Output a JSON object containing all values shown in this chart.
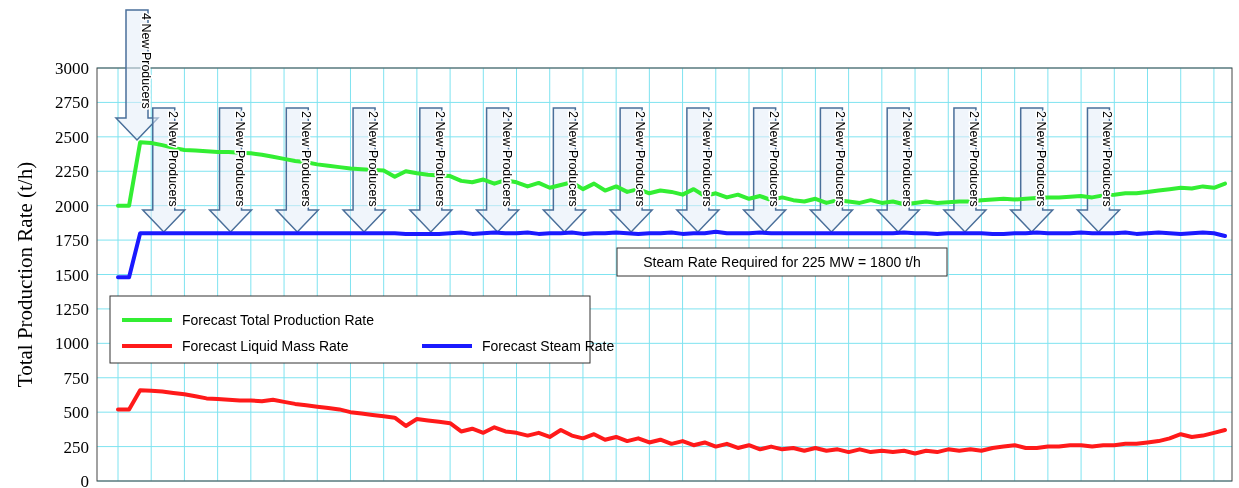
{
  "chart_data": {
    "type": "line",
    "ylabel": "Total Production Rate (t/h)",
    "categories": [
      null,
      null,
      null,
      null,
      null,
      null,
      null,
      null,
      null,
      null,
      null,
      null,
      null,
      null,
      null,
      null,
      null,
      null,
      null,
      null,
      null,
      null,
      null,
      null,
      null,
      null,
      null,
      null,
      null,
      null,
      null,
      null,
      null,
      null,
      null,
      null,
      null,
      null,
      null,
      null,
      null,
      null,
      null,
      null,
      null,
      null,
      null,
      null,
      null,
      null,
      null,
      null,
      null,
      null,
      null,
      null,
      null,
      null,
      null,
      null,
      null,
      null,
      null,
      null,
      null,
      null,
      null,
      null,
      null,
      null,
      null,
      null,
      null,
      null,
      null,
      null,
      null,
      null,
      null,
      null,
      null,
      null,
      null,
      null,
      null,
      null,
      null,
      null,
      null,
      null,
      null,
      null,
      null,
      null,
      null,
      null,
      null,
      null,
      null,
      null,
      null
    ],
    "series": [
      {
        "name": "Forecast Total Production Rate",
        "color": "#33ee33",
        "values": [
          2000,
          2000,
          2460,
          2455,
          2440,
          2420,
          2405,
          2400,
          2395,
          2390,
          2390,
          2385,
          2380,
          2370,
          2355,
          2340,
          2325,
          2315,
          2300,
          2290,
          2280,
          2270,
          2265,
          2260,
          2255,
          2210,
          2250,
          2235,
          2225,
          2220,
          2215,
          2180,
          2170,
          2190,
          2160,
          2185,
          2170,
          2140,
          2165,
          2130,
          2150,
          2170,
          2120,
          2160,
          2110,
          2140,
          2100,
          2120,
          2090,
          2110,
          2100,
          2080,
          2120,
          2070,
          2090,
          2060,
          2080,
          2050,
          2070,
          2040,
          2060,
          2040,
          2030,
          2050,
          2020,
          2040,
          2030,
          2020,
          2040,
          2020,
          2030,
          2010,
          2020,
          2030,
          2020,
          2025,
          2030,
          2030,
          2040,
          2045,
          2050,
          2045,
          2050,
          2055,
          2060,
          2060,
          2065,
          2070,
          2060,
          2075,
          2080,
          2090,
          2090,
          2100,
          2110,
          2120,
          2130,
          2125,
          2140,
          2130,
          2160
        ]
      },
      {
        "name": "Forecast Liquid Mass Rate",
        "color": "#ff1a1a",
        "values": [
          520,
          520,
          660,
          655,
          650,
          640,
          630,
          615,
          600,
          595,
          590,
          585,
          585,
          580,
          590,
          575,
          560,
          550,
          540,
          530,
          520,
          500,
          490,
          480,
          470,
          460,
          400,
          450,
          440,
          430,
          420,
          360,
          380,
          350,
          390,
          360,
          350,
          330,
          350,
          320,
          370,
          330,
          310,
          340,
          300,
          320,
          290,
          310,
          280,
          300,
          270,
          290,
          260,
          280,
          250,
          270,
          240,
          260,
          230,
          250,
          230,
          240,
          220,
          240,
          220,
          230,
          210,
          230,
          210,
          220,
          210,
          220,
          200,
          220,
          210,
          230,
          220,
          230,
          220,
          240,
          250,
          260,
          240,
          240,
          250,
          250,
          260,
          260,
          250,
          260,
          260,
          270,
          270,
          280,
          290,
          310,
          340,
          320,
          330,
          350,
          370
        ]
      },
      {
        "name": "Forecast Steam Rate",
        "color": "#1a1aff",
        "values": [
          1480,
          1480,
          1800,
          1800,
          1800,
          1800,
          1800,
          1800,
          1800,
          1800,
          1800,
          1800,
          1800,
          1800,
          1800,
          1800,
          1800,
          1800,
          1800,
          1800,
          1800,
          1800,
          1800,
          1800,
          1800,
          1800,
          1795,
          1795,
          1795,
          1795,
          1800,
          1805,
          1795,
          1800,
          1805,
          1800,
          1800,
          1805,
          1795,
          1800,
          1800,
          1805,
          1795,
          1800,
          1800,
          1805,
          1800,
          1795,
          1800,
          1800,
          1805,
          1795,
          1800,
          1800,
          1810,
          1800,
          1800,
          1800,
          1805,
          1800,
          1800,
          1800,
          1800,
          1800,
          1800,
          1800,
          1800,
          1800,
          1800,
          1800,
          1800,
          1805,
          1800,
          1800,
          1795,
          1800,
          1800,
          1800,
          1800,
          1795,
          1795,
          1800,
          1800,
          1805,
          1800,
          1800,
          1800,
          1805,
          1800,
          1800,
          1800,
          1805,
          1795,
          1800,
          1805,
          1800,
          1795,
          1800,
          1805,
          1800,
          1780
        ]
      }
    ],
    "ylim": [
      0,
      3000
    ],
    "yticks": [
      0,
      250,
      500,
      750,
      1000,
      1250,
      1500,
      1750,
      2000,
      2250,
      2500,
      2750,
      3000
    ],
    "grid": true,
    "legend": "left",
    "line_style": "solid",
    "annotations": [
      "4 New Producers",
      "2 New Producers",
      "2 New Producers",
      "2 New Producers",
      "2 New Producers",
      "2 New Producers",
      "2 New Producers",
      "2 New Producers",
      "2 New Producers",
      "2 New Producers",
      "2 New Producers",
      "2 New Producers",
      "2 New Producers",
      "2 New Producers",
      "2 New Producers",
      "2 New Producers",
      "Steam Rate Required for 225 MW = 1800 t/h"
    ]
  }
}
